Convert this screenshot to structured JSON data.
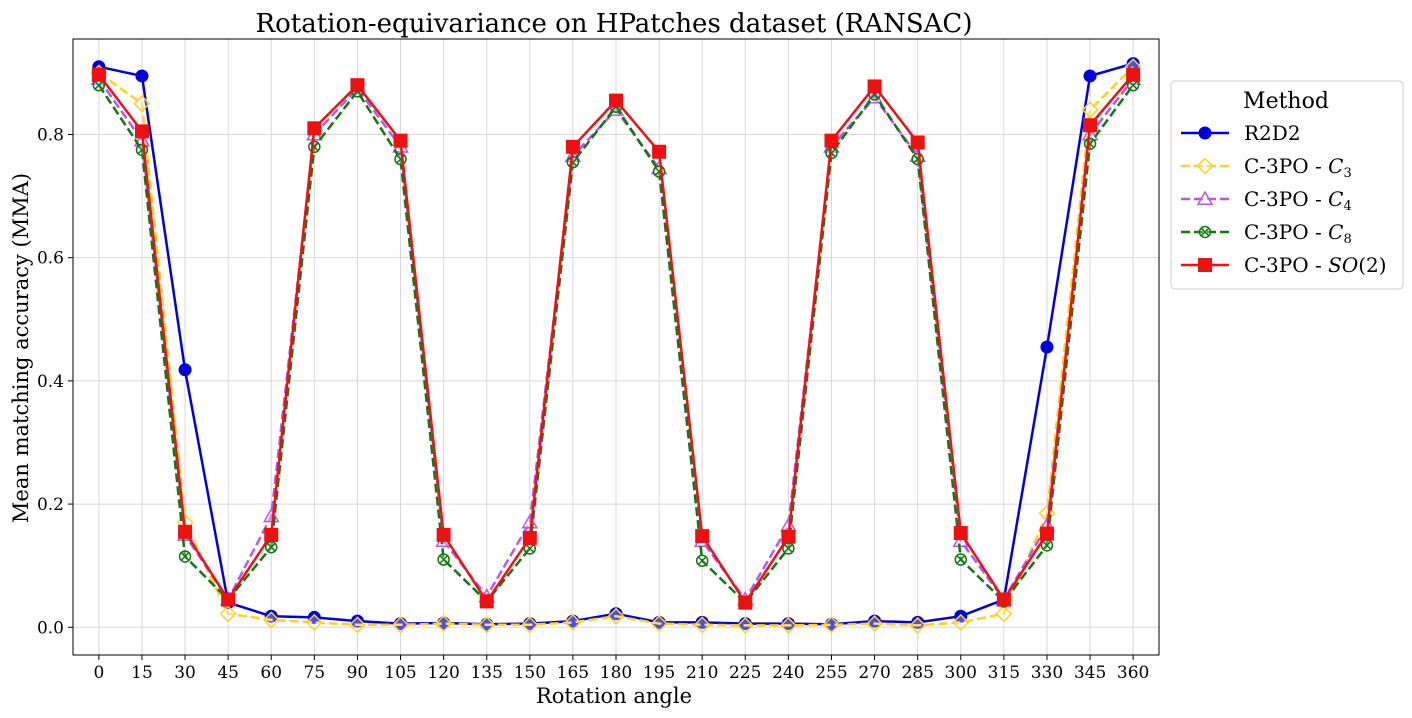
{
  "chart_data": {
    "type": "line",
    "title": "Rotation-equivariance on HPatches dataset (RANSAC)",
    "xlabel": "Rotation angle",
    "ylabel": "Mean matching accuracy (MMA)",
    "x": [
      0,
      15,
      30,
      45,
      60,
      75,
      90,
      105,
      120,
      135,
      150,
      165,
      180,
      195,
      210,
      225,
      240,
      255,
      270,
      285,
      300,
      315,
      330,
      345,
      360
    ],
    "xticks": [
      "0",
      "15",
      "30",
      "45",
      "60",
      "75",
      "90",
      "105",
      "120",
      "135",
      "150",
      "165",
      "180",
      "195",
      "210",
      "225",
      "240",
      "255",
      "270",
      "285",
      "300",
      "315",
      "330",
      "345",
      "360"
    ],
    "yticks": [
      "0.0",
      "0.2",
      "0.4",
      "0.6",
      "0.8"
    ],
    "ylim": [
      -0.045,
      0.955
    ],
    "grid": true,
    "legend": {
      "title": "Method",
      "placement": "outside-right"
    },
    "series": [
      {
        "name": "R2D2",
        "name_parts": [
          "R2D2",
          "",
          ""
        ],
        "color": "#0000dd",
        "linestyle": "solid",
        "marker": "circle",
        "values": [
          0.91,
          0.895,
          0.418,
          0.04,
          0.018,
          0.016,
          0.01,
          0.006,
          0.007,
          0.005,
          0.006,
          0.01,
          0.022,
          0.008,
          0.008,
          0.006,
          0.006,
          0.005,
          0.01,
          0.008,
          0.018,
          0.045,
          0.455,
          0.895,
          0.915
        ]
      },
      {
        "name": "C-3PO - C3",
        "name_parts": [
          "C-3PO - ",
          "C",
          "3"
        ],
        "color": "#ffd21f",
        "linestyle": "dashed",
        "marker": "diamond",
        "values": [
          0.9,
          0.85,
          0.17,
          0.022,
          0.012,
          0.008,
          0.004,
          0.004,
          0.006,
          0.004,
          0.004,
          0.008,
          0.018,
          0.006,
          0.004,
          0.003,
          0.003,
          0.004,
          0.006,
          0.003,
          0.008,
          0.022,
          0.185,
          0.84,
          0.91
        ]
      },
      {
        "name": "C-3PO - C4",
        "name_parts": [
          "C-3PO - ",
          "C",
          "4"
        ],
        "color": "#bb55ee",
        "linestyle": "dashed",
        "marker": "triangle",
        "values": [
          0.89,
          0.79,
          0.15,
          0.045,
          0.18,
          0.8,
          0.875,
          0.78,
          0.14,
          0.05,
          0.17,
          0.765,
          0.84,
          0.745,
          0.14,
          0.045,
          0.165,
          0.78,
          0.86,
          0.765,
          0.14,
          0.045,
          0.165,
          0.8,
          0.89
        ]
      },
      {
        "name": "C-3PO - C8",
        "name_parts": [
          "C-3PO - ",
          "C",
          "8"
        ],
        "color": "#117711",
        "linestyle": "dashed",
        "marker": "xcircle",
        "values": [
          0.88,
          0.775,
          0.115,
          0.045,
          0.13,
          0.78,
          0.87,
          0.76,
          0.11,
          0.042,
          0.128,
          0.755,
          0.845,
          0.74,
          0.108,
          0.04,
          0.128,
          0.77,
          0.865,
          0.76,
          0.11,
          0.042,
          0.133,
          0.785,
          0.88
        ]
      },
      {
        "name": "C-3PO - SO(2)",
        "name_parts": [
          "C-3PO - ",
          "SO",
          "(2)"
        ],
        "color": "#ee1111",
        "linestyle": "solid",
        "marker": "square",
        "values": [
          0.897,
          0.805,
          0.155,
          0.045,
          0.15,
          0.81,
          0.88,
          0.79,
          0.15,
          0.042,
          0.145,
          0.78,
          0.855,
          0.772,
          0.148,
          0.04,
          0.147,
          0.79,
          0.878,
          0.787,
          0.153,
          0.045,
          0.152,
          0.815,
          0.897
        ]
      }
    ]
  }
}
